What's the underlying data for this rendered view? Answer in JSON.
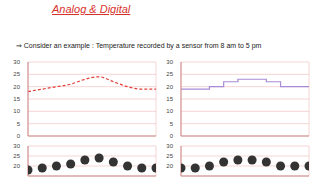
{
  "heading": "Analog & Digital",
  "text": "⇒ Consider an example : Temperature recorded by a sensor from 8 am to 5 pm",
  "chart_data": [
    {
      "type": "line",
      "x": [
        8,
        9,
        10,
        11,
        12,
        13,
        14,
        15,
        16,
        17
      ],
      "values": [
        18,
        19,
        20,
        21,
        23,
        24,
        22,
        20,
        19,
        19
      ],
      "color": "#e0403a",
      "line_style": "dashed",
      "xlim": [
        8,
        17
      ],
      "xticks": [
        8,
        9,
        10,
        11,
        12,
        13,
        14,
        15,
        16,
        17
      ],
      "ylim": [
        0,
        30
      ],
      "yticks": [
        0,
        5,
        10,
        15,
        20,
        25,
        30
      ],
      "grid": true,
      "tick_labels": "y"
    },
    {
      "type": "step",
      "x": [
        8,
        9,
        10,
        11,
        12,
        13,
        14,
        15,
        16,
        17
      ],
      "values": [
        19,
        19,
        20,
        22,
        23,
        23,
        22,
        20,
        20,
        20
      ],
      "color": "#a78bd6",
      "xlim": [
        8,
        17
      ],
      "xticks": [
        8,
        9,
        10,
        11,
        12,
        13,
        14,
        15,
        16,
        17
      ],
      "ylim": [
        0,
        30
      ],
      "yticks": [
        0,
        5,
        10,
        15,
        20,
        25,
        30
      ],
      "grid": true,
      "tick_labels": "y"
    },
    {
      "type": "scatter",
      "x": [
        8,
        9,
        10,
        11,
        12,
        13,
        14,
        15,
        16,
        17
      ],
      "values": [
        18,
        19,
        20,
        21,
        23,
        24,
        22,
        20,
        19,
        19
      ],
      "color": "#333333",
      "xlim": [
        8,
        17
      ],
      "xticks": [
        8,
        9,
        10,
        11,
        12,
        13,
        14,
        15,
        16,
        17
      ],
      "ylim": [
        15,
        30
      ],
      "yticks": [
        20,
        25,
        30
      ],
      "grid": true,
      "tick_labels": "y"
    },
    {
      "type": "scatter",
      "x": [
        8,
        9,
        10,
        11,
        12,
        13,
        14,
        15,
        16,
        17
      ],
      "values": [
        19,
        19,
        20,
        22,
        23,
        23,
        22,
        20,
        20,
        20
      ],
      "color": "#333333",
      "xlim": [
        8,
        17
      ],
      "xticks": [
        8,
        9,
        10,
        11,
        12,
        13,
        14,
        15,
        16,
        17
      ],
      "ylim": [
        15,
        30
      ],
      "yticks": [
        20,
        25,
        30
      ],
      "grid": true,
      "tick_labels": "y"
    }
  ]
}
